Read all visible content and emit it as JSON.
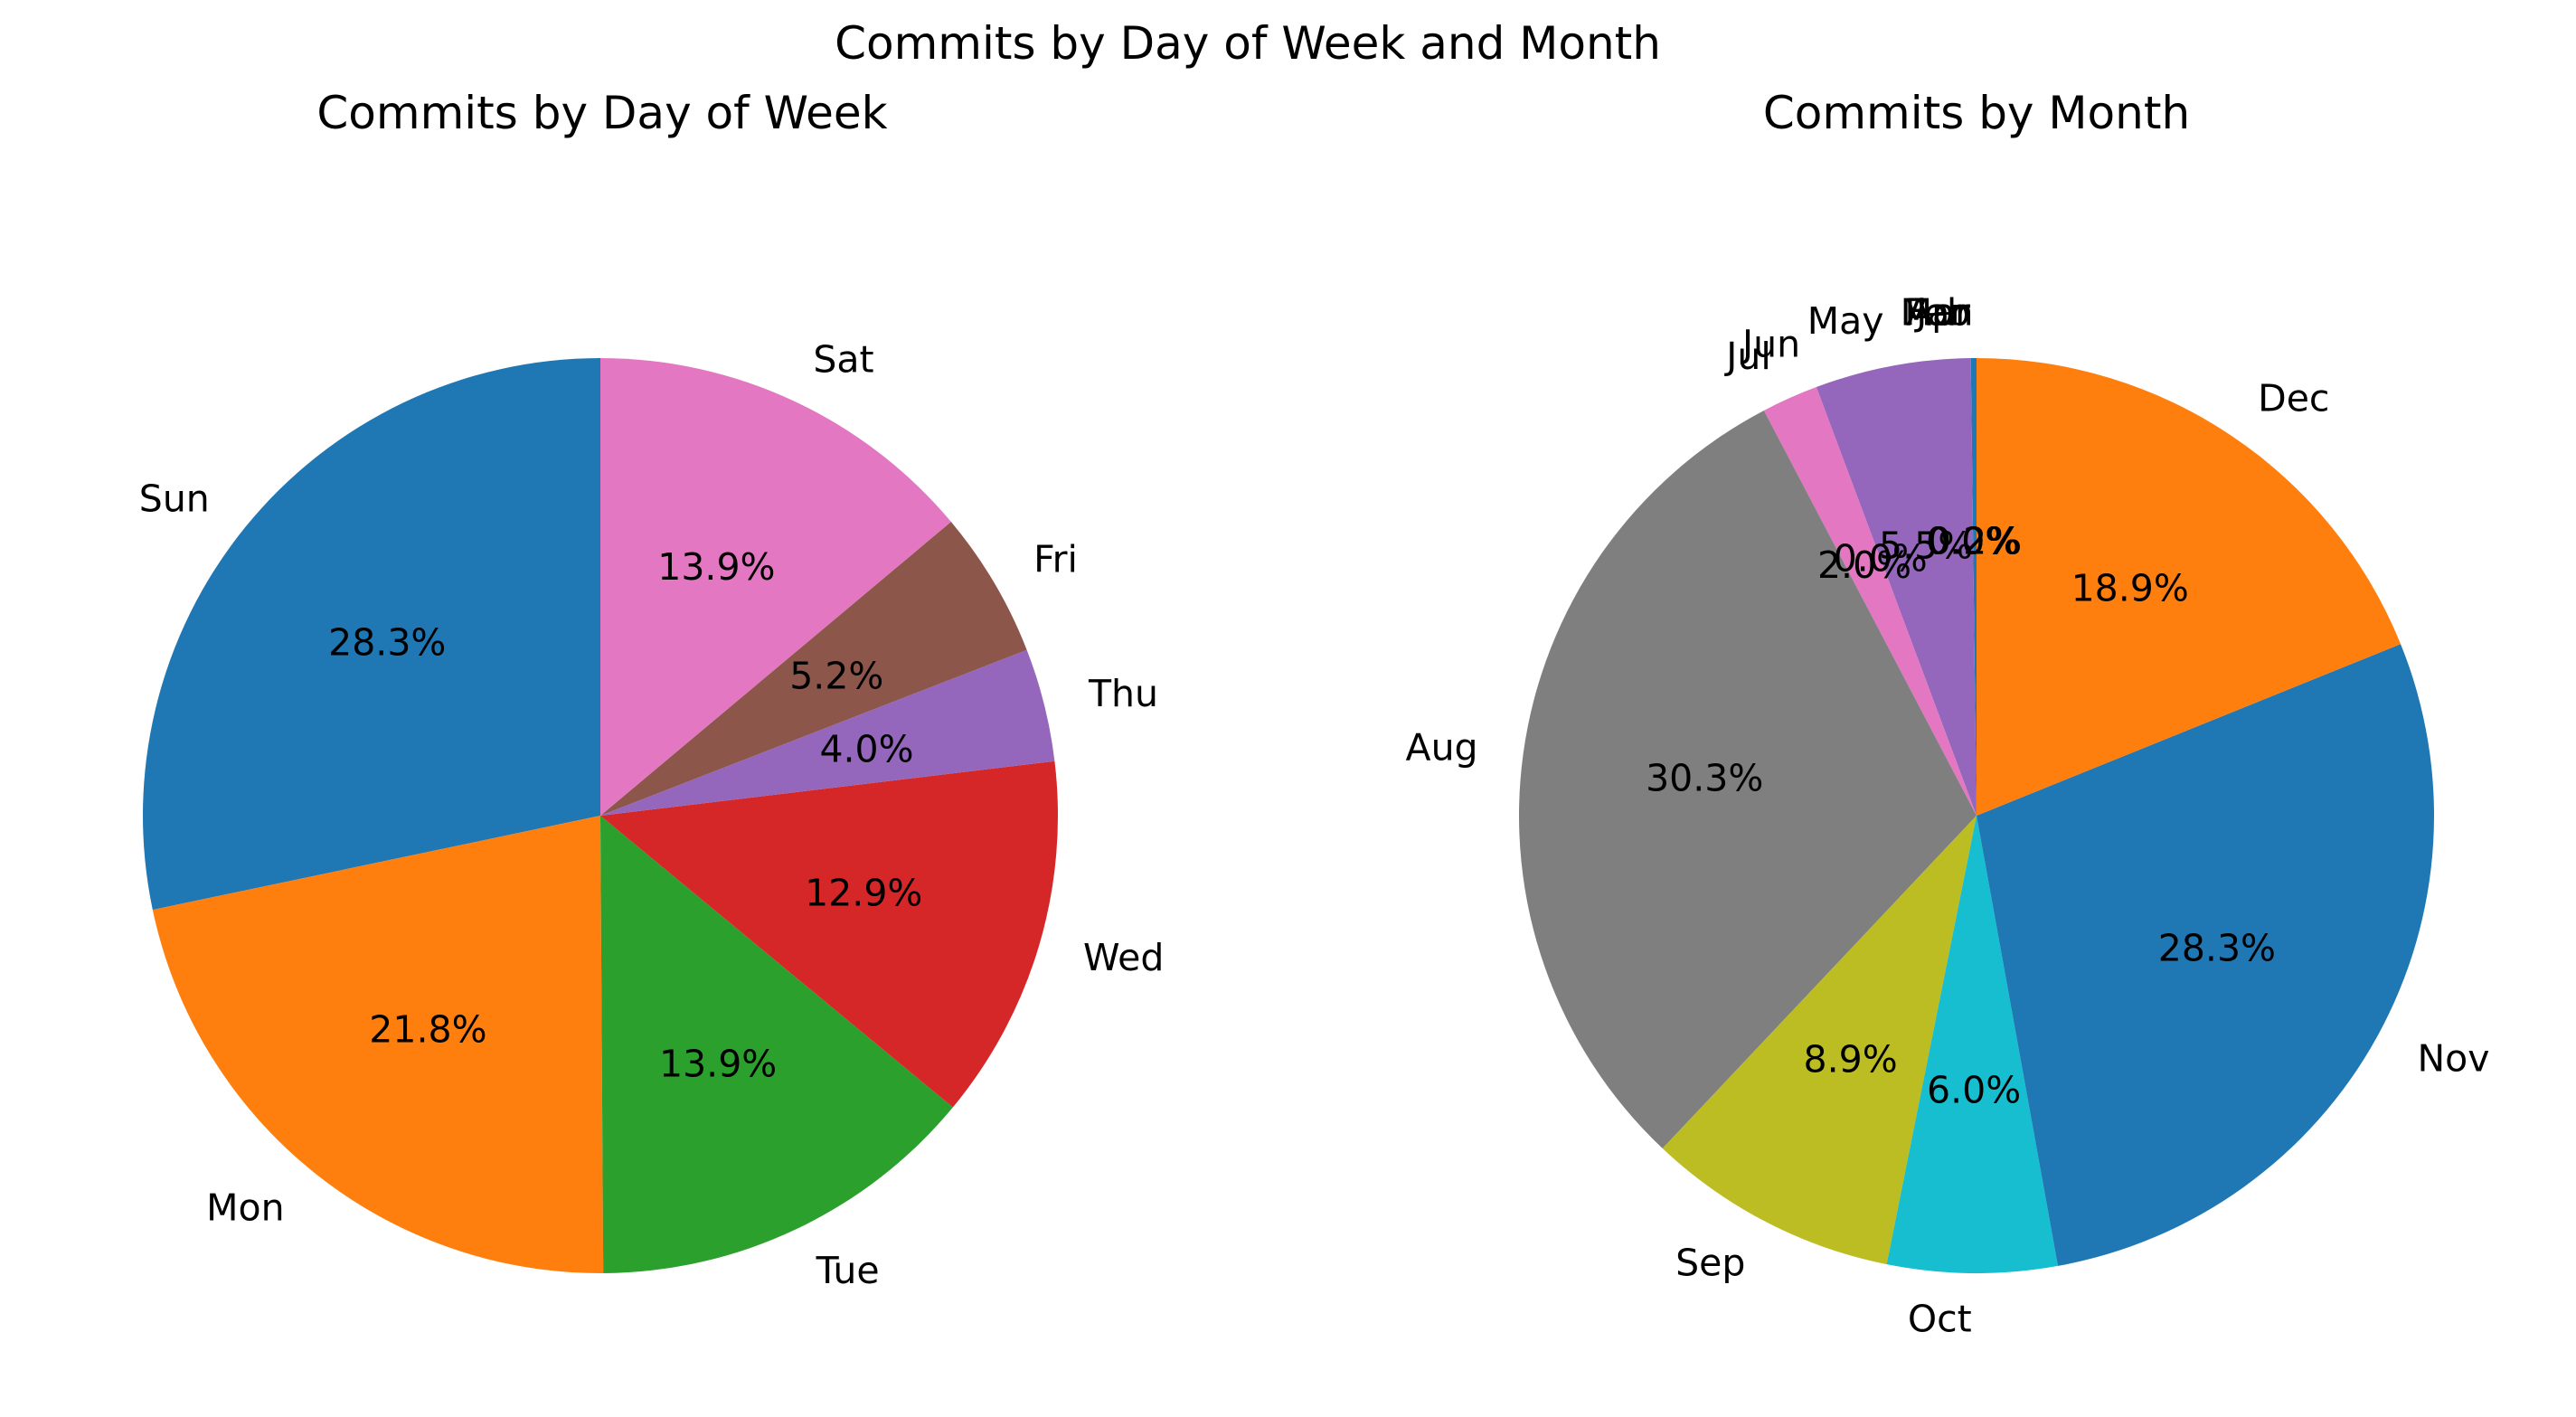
{
  "figure": {
    "suptitle": "Commits by Day of Week and Month"
  },
  "background": "#ffffff",
  "text_color": "#000000",
  "chart_data": [
    {
      "type": "pie",
      "title": "Commits by Day of Week",
      "categories": [
        "Sun",
        "Mon",
        "Tue",
        "Wed",
        "Thu",
        "Fri",
        "Sat"
      ],
      "values": [
        28.3,
        21.8,
        13.9,
        12.9,
        4.0,
        5.2,
        13.9
      ],
      "value_labels": [
        "28.3%",
        "21.8%",
        "13.9%",
        "12.9%",
        "4.0%",
        "5.2%",
        "13.9%"
      ],
      "colors": [
        "#1f77b4",
        "#ff7f0e",
        "#2ca02c",
        "#d62728",
        "#9467bd",
        "#8c564b",
        "#e377c2"
      ],
      "startangle": 90,
      "counterclock": true,
      "labeldistance": 1.1,
      "pctdistance": 0.6,
      "legend": "none",
      "grid": "off"
    },
    {
      "type": "pie",
      "title": "Commits by Month",
      "categories": [
        "Jan",
        "Feb",
        "Mar",
        "Apr",
        "May",
        "Jun",
        "Jul",
        "Aug",
        "Sep",
        "Oct",
        "Nov",
        "Dec"
      ],
      "values": [
        0.2,
        0.0,
        0.0,
        0.0,
        5.5,
        0.0,
        2.0,
        30.3,
        8.9,
        6.0,
        28.3,
        18.9
      ],
      "value_labels": [
        "0.2%",
        "0.0%",
        "0.0%",
        "0.0%",
        "5.5%",
        "0.0%",
        "2.0%",
        "30.3%",
        "8.9%",
        "6.0%",
        "28.3%",
        "18.9%"
      ],
      "colors": [
        "#1f77b4",
        "#ff7f0e",
        "#2ca02c",
        "#d62728",
        "#9467bd",
        "#8c564b",
        "#e377c2",
        "#7f7f7f",
        "#bcbd22",
        "#17becf",
        "#1f77b4",
        "#ff7f0e"
      ],
      "startangle": 90,
      "counterclock": true,
      "labeldistance": 1.1,
      "pctdistance": 0.6,
      "legend": "none",
      "grid": "off"
    }
  ]
}
